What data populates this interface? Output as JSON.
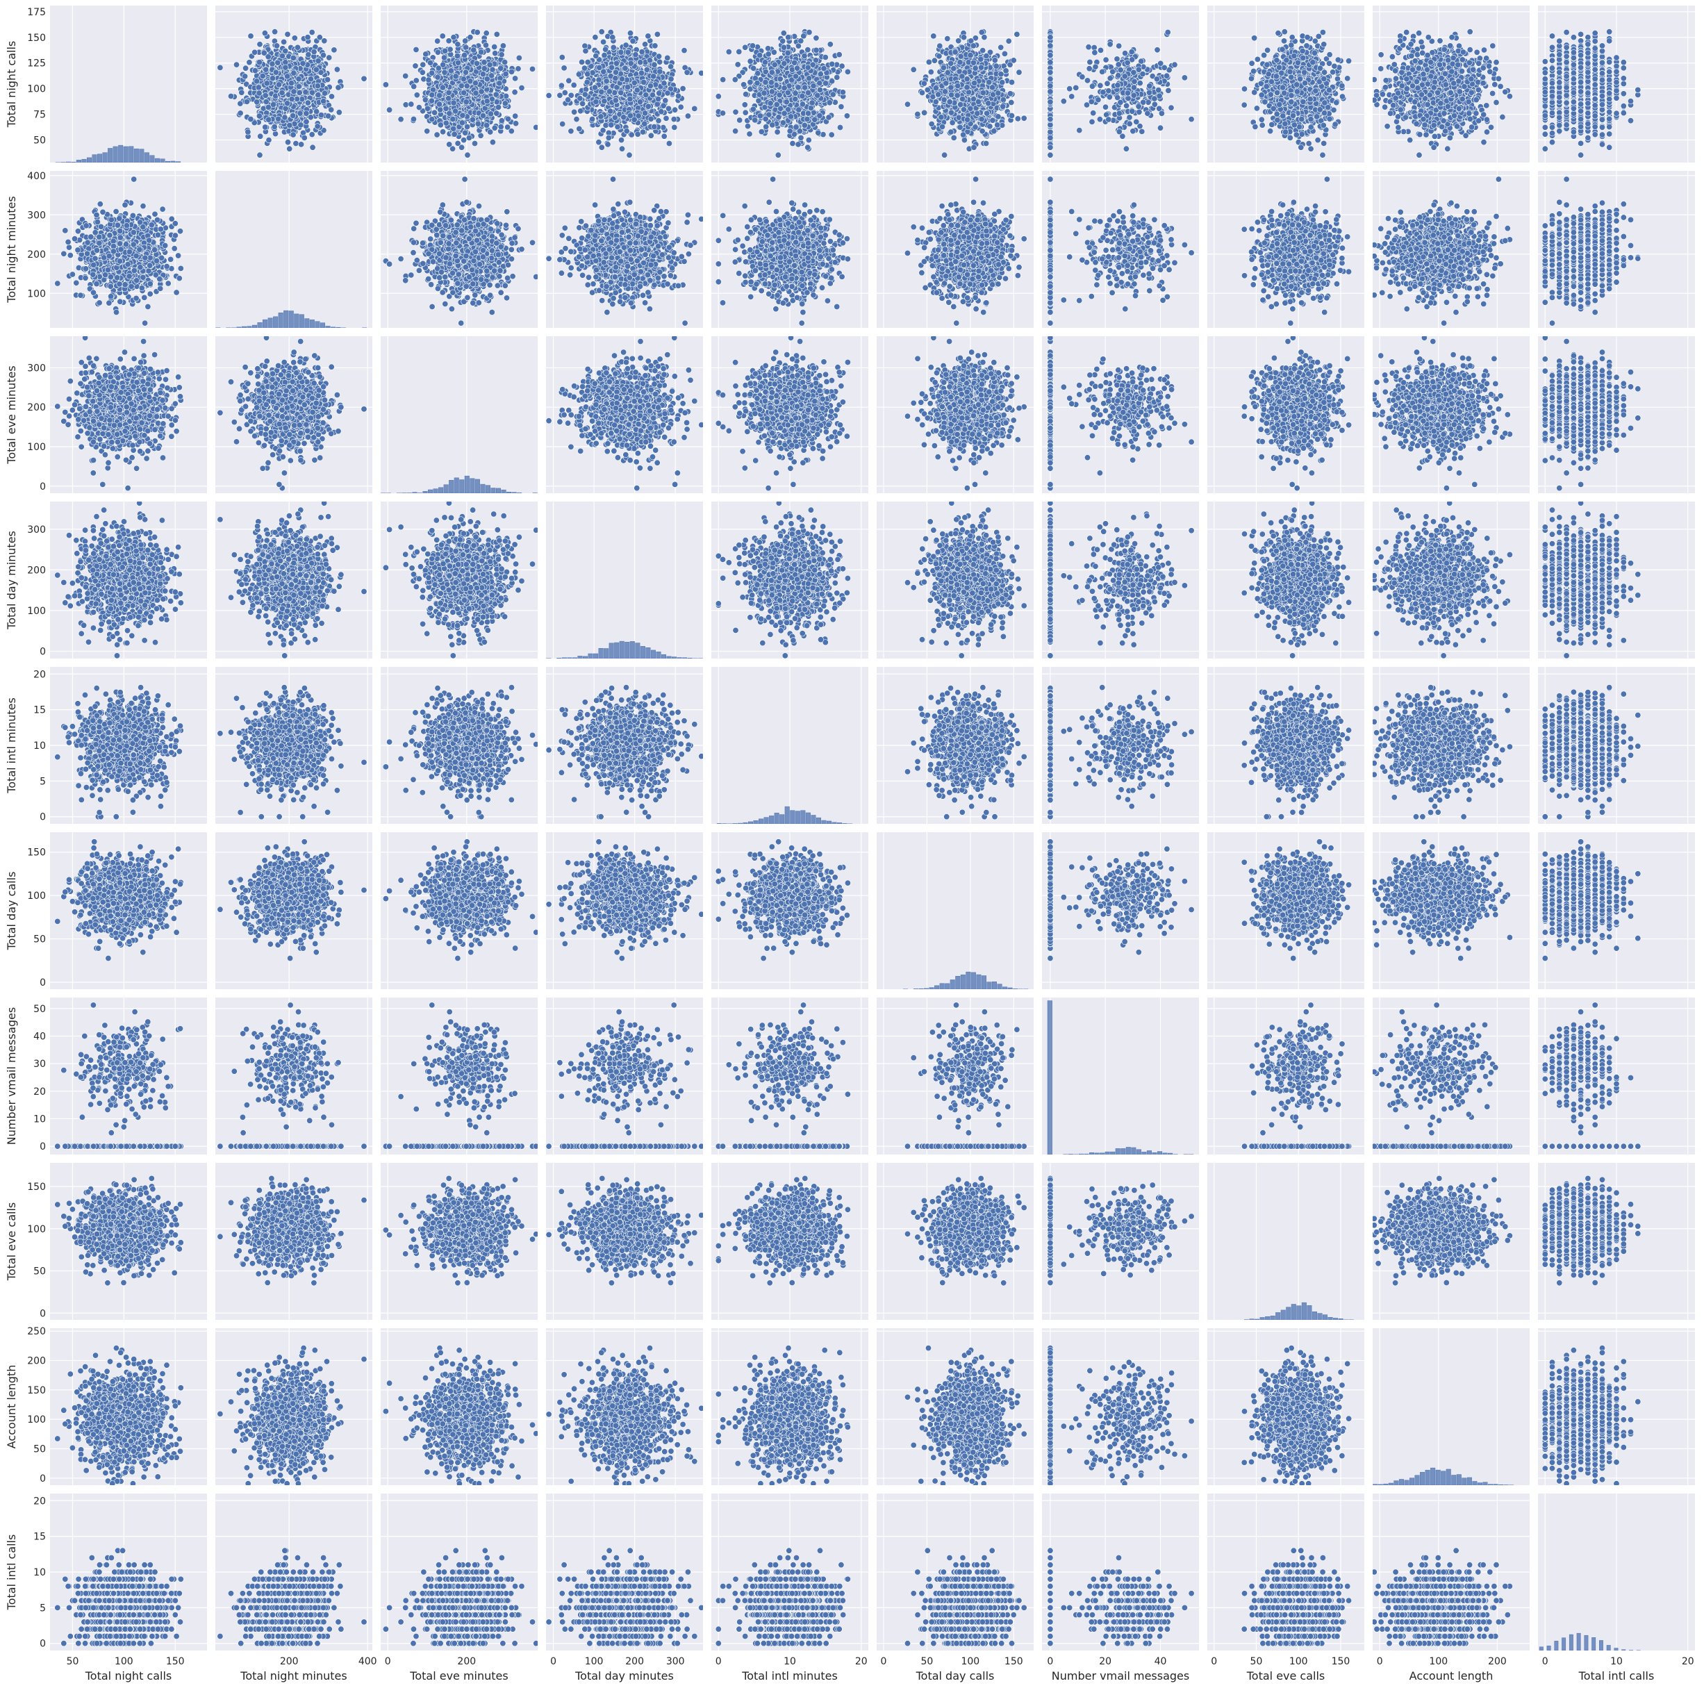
{
  "chart_data": {
    "type": "scatter",
    "kind": "pairplot",
    "diagonal": "histogram",
    "variables": [
      "Total night calls",
      "Total night minutes",
      "Total eve minutes",
      "Total day minutes",
      "Total intl minutes",
      "Total day calls",
      "Number vmail messages",
      "Total eve calls",
      "Account length",
      "Total intl calls"
    ],
    "axes": [
      {
        "name": "Total night calls",
        "lim": [
          28,
          181
        ],
        "ticks": [
          50,
          100,
          150
        ],
        "yticks": [
          50,
          75,
          100,
          125,
          150,
          175
        ],
        "mean": 100,
        "sd": 20,
        "zero_frac": 0
      },
      {
        "name": "Total night minutes",
        "lim": [
          12,
          412
        ],
        "ticks": [
          200,
          400
        ],
        "yticks": [
          100,
          200,
          300,
          400
        ],
        "mean": 200,
        "sd": 50,
        "zero_frac": 0
      },
      {
        "name": "Total eve minutes",
        "lim": [
          -18,
          380
        ],
        "ticks": [
          0,
          200
        ],
        "yticks": [
          0,
          100,
          200,
          300
        ],
        "mean": 201,
        "sd": 51,
        "zero_frac": 0
      },
      {
        "name": "Total day minutes",
        "lim": [
          -18,
          368
        ],
        "ticks": [
          0,
          100,
          200,
          300
        ],
        "yticks": [
          0,
          100,
          200,
          300
        ],
        "mean": 180,
        "sd": 54,
        "zero_frac": 0
      },
      {
        "name": "Total intl minutes",
        "lim": [
          -1,
          21
        ],
        "ticks": [
          0,
          10,
          20
        ],
        "yticks": [
          0,
          5,
          10,
          15,
          20
        ],
        "mean": 10.2,
        "sd": 2.8,
        "zero_frac": 0.005
      },
      {
        "name": "Total day calls",
        "lim": [
          -8,
          173
        ],
        "ticks": [
          0,
          50,
          100,
          150
        ],
        "yticks": [
          0,
          50,
          100,
          150
        ],
        "mean": 100,
        "sd": 20,
        "zero_frac": 0
      },
      {
        "name": "Number vmail messages",
        "lim": [
          -3,
          54
        ],
        "ticks": [
          0,
          20,
          40
        ],
        "yticks": [
          0,
          10,
          20,
          30,
          40,
          50
        ],
        "mean": 29,
        "sd": 7.5,
        "zero_frac": 0.72
      },
      {
        "name": "Total eve calls",
        "lim": [
          -8,
          178
        ],
        "ticks": [
          0,
          50,
          100,
          150
        ],
        "yticks": [
          0,
          50,
          100,
          150
        ],
        "mean": 100,
        "sd": 20,
        "zero_frac": 0
      },
      {
        "name": "Account length",
        "lim": [
          -12,
          255
        ],
        "ticks": [
          0,
          100,
          200
        ],
        "yticks": [
          0,
          50,
          100,
          150,
          200,
          250
        ],
        "mean": 101,
        "sd": 40,
        "zero_frac": 0
      },
      {
        "name": "Total intl calls",
        "lim": [
          -1,
          21
        ],
        "ticks": [
          0,
          10,
          20
        ],
        "yticks": [
          0,
          5,
          10,
          15,
          20
        ],
        "mean": 4.5,
        "sd": 2.5,
        "zero_frac": 0,
        "discrete": true
      }
    ],
    "n_points_per_panel": 1100,
    "points_style": {
      "color": "#4c72b0",
      "edge": "#ffffff"
    },
    "hist_color": "#4c72b0",
    "grid": true,
    "legend": "none"
  },
  "style": {
    "panel_bg": "#eaeaf2",
    "grid_color": "#ffffff",
    "text_color": "#262626"
  }
}
